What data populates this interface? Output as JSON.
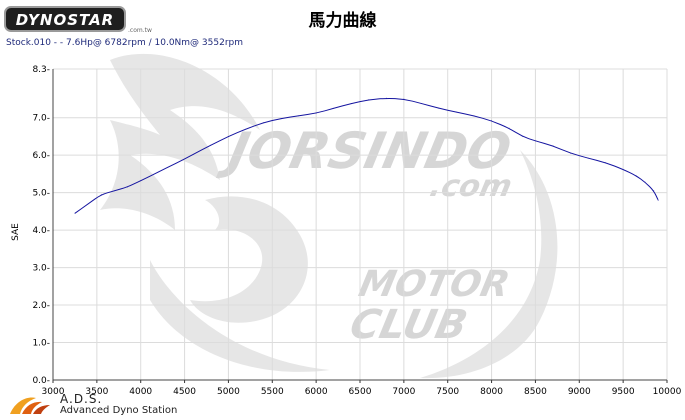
{
  "header": {
    "brand": "DYNOSTAR",
    "brand_sub": ".com.tw",
    "title": "馬力曲線",
    "subtitle": "Stock.010 -  - 7.6Hp@ 6782rpm / 10.0Nm@ 3552rpm"
  },
  "footer": {
    "brand_line1": "A.D.S.",
    "brand_line2": "Advanced Dyno Station"
  },
  "watermark": {
    "line1": "JORSINDO",
    "line2": ".com",
    "line3": "MOTOR",
    "line4": "CLUB"
  },
  "chart_data": {
    "type": "line",
    "title": "馬力曲線",
    "ylabel": "SAE",
    "xlabel": "",
    "xlim": [
      3000,
      10000
    ],
    "ylim": [
      0,
      8.3
    ],
    "x_ticks": [
      3000,
      3500,
      4000,
      4500,
      5000,
      5500,
      6000,
      6500,
      7000,
      7500,
      8000,
      8500,
      9000,
      9500,
      10000
    ],
    "y_ticks": [
      0.0,
      1.0,
      2.0,
      3.0,
      4.0,
      5.0,
      6.0,
      7.0,
      8.3
    ],
    "y_tick_labels": [
      "0.0-",
      "1.0-",
      "2.0-",
      "3.0-",
      "4.0-",
      "5.0-",
      "6.0-",
      "7.0-",
      "8.3-"
    ],
    "grid": true,
    "colors": {
      "line": "#1414a0",
      "grid": "#dcdcdc"
    },
    "series": [
      {
        "x": [
          3250,
          3400,
          3550,
          3700,
          3850,
          4000,
          4200,
          4400,
          4600,
          4800,
          5000,
          5200,
          5400,
          5600,
          5800,
          6000,
          6200,
          6400,
          6600,
          6800,
          7000,
          7200,
          7400,
          7600,
          7800,
          8000,
          8200,
          8350,
          8500,
          8700,
          8900,
          9100,
          9300,
          9500,
          9650,
          9750,
          9850,
          9900
        ],
        "y": [
          4.45,
          4.7,
          4.95,
          5.05,
          5.15,
          5.32,
          5.55,
          5.78,
          6.02,
          6.27,
          6.5,
          6.7,
          6.87,
          6.98,
          7.05,
          7.12,
          7.25,
          7.38,
          7.48,
          7.52,
          7.5,
          7.38,
          7.25,
          7.15,
          7.05,
          6.92,
          6.72,
          6.5,
          6.38,
          6.25,
          6.05,
          5.92,
          5.8,
          5.62,
          5.45,
          5.28,
          5.05,
          4.8
        ]
      }
    ]
  }
}
